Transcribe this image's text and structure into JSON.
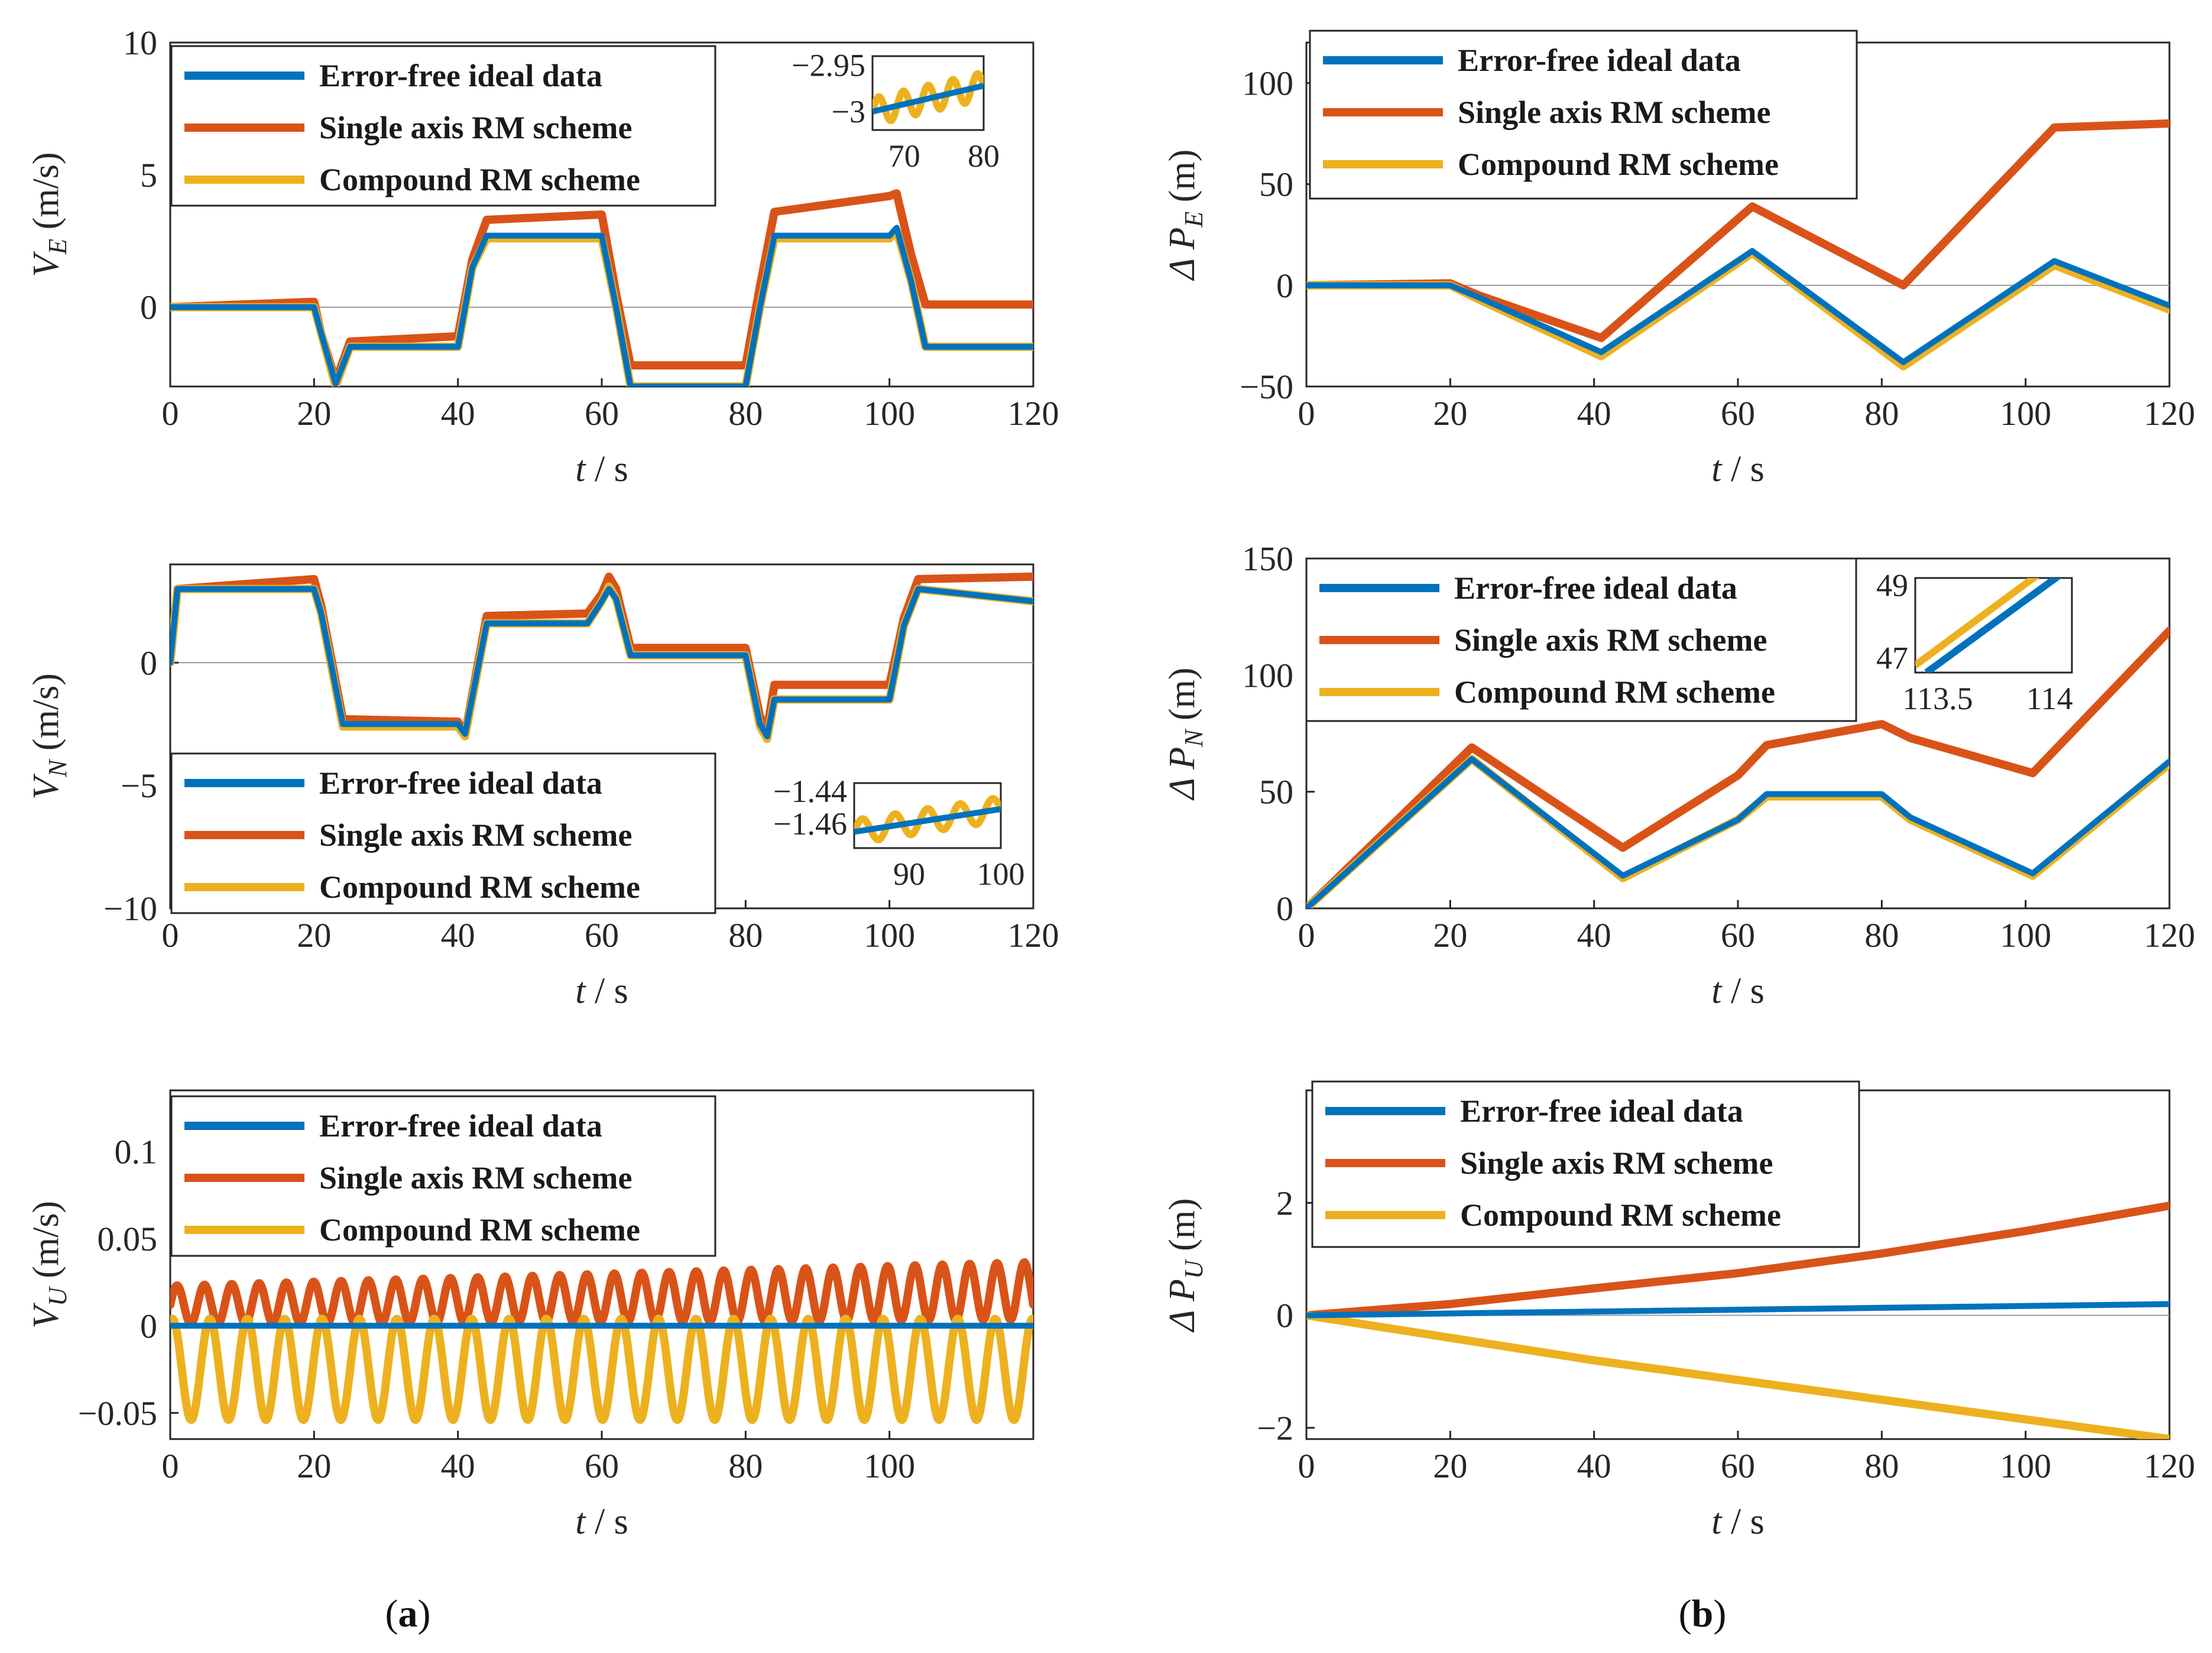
{
  "figure": {
    "caption_a_letter": "a",
    "caption_b_letter": "b",
    "xlabel_t": "t",
    "xlabel_unit": " / s"
  },
  "colors": {
    "ideal": "#0072BD",
    "single": "#D95319",
    "compound": "#EDB120"
  },
  "legend": [
    "Error-free ideal data",
    "Single axis RM scheme",
    "Compound RM scheme"
  ],
  "chart_data": [
    {
      "id": "VE",
      "type": "line",
      "ylabel_main": "V",
      "ylabel_sub": "E",
      "ylabel_unit": " (m/s)",
      "xlim": [
        0,
        120
      ],
      "ylim": [
        -3,
        10
      ],
      "xticks": [
        "0",
        "20",
        "40",
        "60",
        "80",
        "100",
        "120"
      ],
      "xtick_values": [
        0,
        20,
        40,
        60,
        80,
        100,
        120
      ],
      "yticks": [
        "0",
        "5",
        "10"
      ],
      "ytick_values": [
        0,
        5,
        10
      ],
      "series": [
        {
          "name": "Error-free ideal data",
          "x": [
            0,
            20,
            21,
            23,
            25,
            40,
            42,
            44,
            60,
            62,
            64,
            80,
            82,
            84,
            100,
            101,
            103,
            105,
            120
          ],
          "y": [
            0,
            0,
            -1.0,
            -2.9,
            -1.5,
            -1.5,
            1.5,
            2.7,
            2.7,
            0,
            -3.0,
            -3.0,
            0,
            2.7,
            2.7,
            3.0,
            1.0,
            -1.5,
            -1.5
          ]
        },
        {
          "name": "Single axis RM scheme",
          "x": [
            0,
            20,
            21,
            23,
            25,
            40,
            42,
            44,
            60,
            62,
            64,
            80,
            82,
            84,
            100,
            101,
            103,
            105,
            120
          ],
          "y": [
            0,
            0.2,
            -1.0,
            -2.8,
            -1.3,
            -1.1,
            1.8,
            3.3,
            3.5,
            0.5,
            -2.2,
            -2.2,
            0.8,
            3.6,
            4.2,
            4.3,
            2.0,
            0.1,
            0.1
          ]
        },
        {
          "name": "Compound RM scheme",
          "x": [
            0,
            20,
            21,
            23,
            25,
            40,
            42,
            44,
            60,
            62,
            64,
            80,
            82,
            84,
            100,
            101,
            103,
            105,
            120
          ],
          "y": [
            0,
            0,
            -1.0,
            -3.0,
            -1.5,
            -1.5,
            1.5,
            2.6,
            2.6,
            0,
            -3.0,
            -3.0,
            0,
            2.6,
            2.6,
            2.9,
            1.0,
            -1.5,
            -1.5
          ]
        }
      ],
      "inset": {
        "xlim": [
          66,
          80
        ],
        "ylim": [
          -3.02,
          -2.94
        ],
        "xticks": [
          "70",
          "80"
        ],
        "xtick_values": [
          70,
          80
        ],
        "yticks": [
          "-2.95",
          "-3"
        ],
        "ytick_values": [
          -2.95,
          -3
        ]
      }
    },
    {
      "id": "VN",
      "type": "line",
      "ylabel_main": "V",
      "ylabel_sub": "N",
      "ylabel_unit": " (m/s)",
      "xlim": [
        0,
        120
      ],
      "ylim": [
        -10,
        4
      ],
      "xticks": [
        "0",
        "20",
        "40",
        "60",
        "80",
        "100",
        "120"
      ],
      "xtick_values": [
        0,
        20,
        40,
        60,
        80,
        100,
        120
      ],
      "yticks": [
        "-10",
        "-5",
        "0"
      ],
      "ytick_values": [
        -10,
        -5,
        0
      ],
      "series": [
        {
          "name": "Error-free ideal data",
          "x": [
            0,
            1,
            20,
            21,
            24,
            40,
            41,
            44,
            58,
            60,
            61,
            62,
            64,
            80,
            82,
            83,
            84,
            100,
            102,
            104,
            120
          ],
          "y": [
            0,
            3,
            3,
            2.0,
            -2.5,
            -2.5,
            -2.9,
            1.6,
            1.6,
            2.5,
            3.0,
            2.6,
            0.3,
            0.3,
            -2.5,
            -3.0,
            -1.5,
            -1.5,
            1.5,
            3.0,
            2.5
          ]
        },
        {
          "name": "Single axis RM scheme",
          "x": [
            0,
            1,
            20,
            21,
            24,
            40,
            41,
            44,
            58,
            60,
            61,
            62,
            64,
            80,
            82,
            83,
            84,
            100,
            102,
            104,
            120
          ],
          "y": [
            0,
            3,
            3.4,
            2.3,
            -2.3,
            -2.4,
            -2.9,
            1.9,
            2.0,
            2.8,
            3.5,
            3.0,
            0.6,
            0.6,
            -2.2,
            -2.7,
            -0.9,
            -0.9,
            1.8,
            3.4,
            3.5
          ]
        },
        {
          "name": "Compound RM scheme",
          "x": [
            0,
            1,
            20,
            21,
            24,
            40,
            41,
            44,
            58,
            60,
            61,
            62,
            64,
            80,
            82,
            83,
            84,
            100,
            102,
            104,
            120
          ],
          "y": [
            0,
            3,
            3,
            2.0,
            -2.6,
            -2.6,
            -3.0,
            1.6,
            1.6,
            2.5,
            3.1,
            2.6,
            0.3,
            0.3,
            -2.6,
            -3.1,
            -1.5,
            -1.5,
            1.5,
            3.0,
            2.5
          ]
        }
      ],
      "inset": {
        "xlim": [
          84,
          100
        ],
        "ylim": [
          -1.475,
          -1.435
        ],
        "xticks": [
          "90",
          "100"
        ],
        "xtick_values": [
          90,
          100
        ],
        "yticks": [
          "-1.44",
          "-1.46"
        ],
        "ytick_values": [
          -1.44,
          -1.46
        ]
      }
    },
    {
      "id": "VU",
      "type": "line",
      "ylabel_main": "V",
      "ylabel_sub": "U",
      "ylabel_unit": " (m/s)",
      "xlim": [
        0,
        120
      ],
      "ylim": [
        -0.065,
        0.135
      ],
      "xticks": [
        "0",
        "20",
        "40",
        "60",
        "80",
        "100"
      ],
      "xtick_values": [
        0,
        20,
        40,
        60,
        80,
        100
      ],
      "yticks": [
        "-0.05",
        "0",
        "0.05",
        "0.1"
      ],
      "ytick_values": [
        -0.05,
        0,
        0.05,
        0.1
      ],
      "series": [
        {
          "name": "Error-free ideal data",
          "x": [
            0,
            120
          ],
          "y": [
            0,
            0
          ]
        },
        {
          "name": "Single axis RM scheme",
          "period": 3.8,
          "offset_start": 0.012,
          "offset_end": 0.02,
          "amplitude": 0.011,
          "x_range": [
            0,
            120
          ]
        },
        {
          "name": "Compound RM scheme",
          "period": 5.2,
          "center": -0.025,
          "amplitude": 0.029,
          "x_range": [
            0,
            120
          ]
        }
      ]
    },
    {
      "id": "PE",
      "type": "line",
      "ylabel_main": "Δ P",
      "ylabel_sub": "E",
      "ylabel_unit": " (m)",
      "xlim": [
        0,
        120
      ],
      "ylim": [
        -50,
        120
      ],
      "xticks": [
        "0",
        "20",
        "40",
        "60",
        "80",
        "100",
        "120"
      ],
      "xtick_values": [
        0,
        20,
        40,
        60,
        80,
        100,
        120
      ],
      "yticks": [
        "-50",
        "0",
        "50",
        "100"
      ],
      "ytick_values": [
        -50,
        0,
        50,
        100
      ],
      "series": [
        {
          "name": "Error-free ideal data",
          "x": [
            0,
            20,
            24,
            41,
            62,
            83,
            104,
            120
          ],
          "y": [
            0,
            0,
            -6,
            -33,
            17,
            -38,
            12,
            -10
          ]
        },
        {
          "name": "Single axis RM scheme",
          "x": [
            0,
            20,
            24,
            41,
            62,
            83,
            104,
            120
          ],
          "y": [
            0,
            1,
            -5,
            -26,
            39,
            0,
            78,
            80
          ]
        },
        {
          "name": "Compound RM scheme",
          "x": [
            0,
            20,
            24,
            41,
            62,
            83,
            104,
            120
          ],
          "y": [
            0,
            0,
            -7,
            -35,
            16,
            -40,
            10,
            -12
          ]
        }
      ]
    },
    {
      "id": "PN",
      "type": "line",
      "ylabel_main": "Δ P",
      "ylabel_sub": "N",
      "ylabel_unit": " (m)",
      "xlim": [
        0,
        120
      ],
      "ylim": [
        0,
        150
      ],
      "xticks": [
        "0",
        "20",
        "40",
        "60",
        "80",
        "100",
        "120"
      ],
      "xtick_values": [
        0,
        20,
        40,
        60,
        80,
        100,
        120
      ],
      "yticks": [
        "0",
        "50",
        "100",
        "150"
      ],
      "ytick_values": [
        0,
        50,
        100,
        150
      ],
      "series": [
        {
          "name": "Error-free ideal data",
          "x": [
            0,
            23,
            44,
            60,
            64,
            80,
            84,
            101,
            120
          ],
          "y": [
            0,
            64,
            14,
            38,
            49,
            49,
            39,
            15,
            63
          ]
        },
        {
          "name": "Single axis RM scheme",
          "x": [
            0,
            23,
            44,
            60,
            64,
            80,
            84,
            101,
            120
          ],
          "y": [
            0,
            69,
            26,
            57,
            70,
            79,
            73,
            58,
            119
          ]
        },
        {
          "name": "Compound RM scheme",
          "x": [
            0,
            23,
            44,
            60,
            64,
            80,
            84,
            101,
            120
          ],
          "y": [
            0,
            64,
            13,
            38,
            48,
            48,
            38,
            14,
            62
          ]
        }
      ],
      "inset": {
        "xlim": [
          113.4,
          114.1
        ],
        "ylim": [
          46.6,
          49.2
        ],
        "xticks": [
          "113.5",
          "114"
        ],
        "xtick_values": [
          113.5,
          114
        ],
        "yticks": [
          "49",
          "47"
        ],
        "ytick_values": [
          49,
          47
        ]
      }
    },
    {
      "id": "PU",
      "type": "line",
      "ylabel_main": "Δ P",
      "ylabel_sub": "U",
      "ylabel_unit": " (m)",
      "xlim": [
        0,
        120
      ],
      "ylim": [
        -2.2,
        4
      ],
      "xticks": [
        "0",
        "20",
        "40",
        "60",
        "80",
        "100",
        "120"
      ],
      "xtick_values": [
        0,
        20,
        40,
        60,
        80,
        100,
        120
      ],
      "yticks": [
        "-2",
        "0",
        "2"
      ],
      "ytick_values": [
        -2,
        0,
        2
      ],
      "series": [
        {
          "name": "Error-free ideal data",
          "x": [
            0,
            120
          ],
          "y": [
            0,
            0.2
          ]
        },
        {
          "name": "Single axis RM scheme",
          "x": [
            0,
            20,
            40,
            60,
            80,
            100,
            120
          ],
          "y": [
            0,
            0.2,
            0.48,
            0.75,
            1.1,
            1.5,
            1.95
          ]
        },
        {
          "name": "Compound RM scheme",
          "x": [
            0,
            20,
            40,
            60,
            80,
            100,
            120
          ],
          "y": [
            0,
            -0.4,
            -0.8,
            -1.15,
            -1.5,
            -1.85,
            -2.2
          ]
        }
      ]
    }
  ]
}
